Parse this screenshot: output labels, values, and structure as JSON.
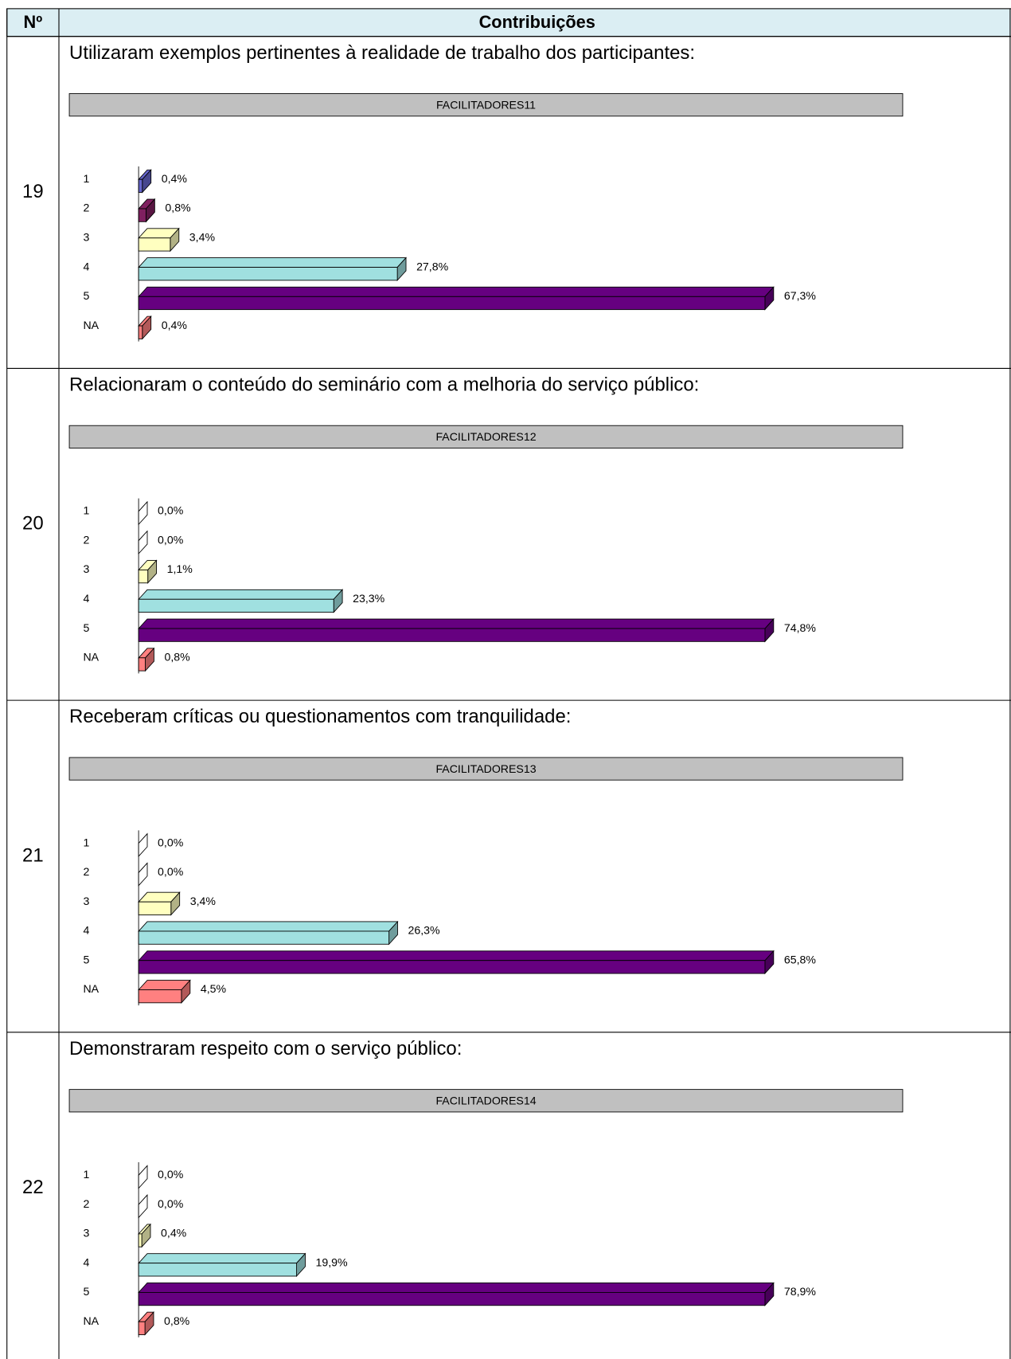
{
  "header": {
    "number_label": "Nº",
    "contributions": "Contribuições"
  },
  "rows": [
    {
      "number": "19",
      "question": "Utilizaram exemplos pertinentes à realidade de trabalho dos participantes:",
      "chart": {
        "type": "bar",
        "title": "FACILITADORES11",
        "categories": [
          "1",
          "2",
          "3",
          "4",
          "5",
          "NA"
        ],
        "values": [
          0.4,
          0.8,
          3.4,
          27.8,
          67.3,
          0.4
        ],
        "value_labels": [
          "0,4%",
          "0,8%",
          "3,4%",
          "27,8%",
          "67,3%",
          "0,4%"
        ],
        "colors": [
          "#6666cc",
          "#802060",
          "#ffffc0",
          "#a0e0e0",
          "#660080",
          "#ff8080"
        ]
      }
    },
    {
      "number": "20",
      "question": "Relacionaram o conteúdo do seminário com a melhoria do serviço público:",
      "chart": {
        "type": "bar",
        "title": "FACILITADORES12",
        "categories": [
          "1",
          "2",
          "3",
          "4",
          "5",
          "NA"
        ],
        "values": [
          0.0,
          0.0,
          1.1,
          23.3,
          74.8,
          0.8
        ],
        "value_labels": [
          "0,0%",
          "0,0%",
          "1,1%",
          "23,3%",
          "74,8%",
          "0,8%"
        ],
        "colors": [
          "#6666cc",
          "#802060",
          "#ffffc0",
          "#a0e0e0",
          "#660080",
          "#ff8080"
        ]
      }
    },
    {
      "number": "21",
      "question": "Receberam críticas ou questionamentos com tranquilidade:",
      "chart": {
        "type": "bar",
        "title": "FACILITADORES13",
        "categories": [
          "1",
          "2",
          "3",
          "4",
          "5",
          "NA"
        ],
        "values": [
          0.0,
          0.0,
          3.4,
          26.3,
          65.8,
          4.5
        ],
        "value_labels": [
          "0,0%",
          "0,0%",
          "3,4%",
          "26,3%",
          "65,8%",
          "4,5%"
        ],
        "colors": [
          "#6666cc",
          "#802060",
          "#ffffc0",
          "#a0e0e0",
          "#660080",
          "#ff8080"
        ]
      }
    },
    {
      "number": "22",
      "question": "Demonstraram respeito com o serviço público:",
      "chart": {
        "type": "bar",
        "title": "FACILITADORES14",
        "categories": [
          "1",
          "2",
          "3",
          "4",
          "5",
          "NA"
        ],
        "values": [
          0.0,
          0.0,
          0.4,
          19.9,
          78.9,
          0.8
        ],
        "value_labels": [
          "0,0%",
          "0,0%",
          "0,4%",
          "19,9%",
          "78,9%",
          "0,8%"
        ],
        "colors": [
          "#6666cc",
          "#802060",
          "#ffffc0",
          "#a0e0e0",
          "#660080",
          "#ff8080"
        ]
      }
    }
  ]
}
